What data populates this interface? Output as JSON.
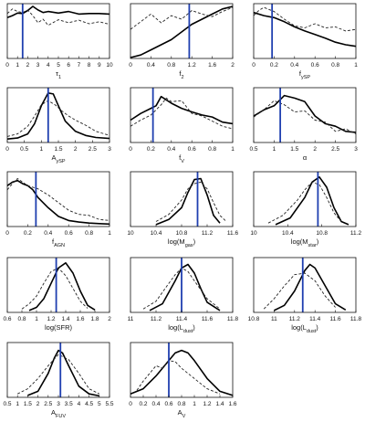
{
  "colors": {
    "axis": "#111111",
    "solid": "#000000",
    "dashed": "#222222",
    "marker": "#1f3fb0"
  },
  "chart_data": [
    {
      "type": "line",
      "xlabel_parts": [
        {
          "t": "τ"
        },
        {
          "t": "1",
          "sub": true
        }
      ],
      "xlim": [
        0,
        10
      ],
      "xticks": [
        "0",
        "1",
        "2",
        "3",
        "4",
        "5",
        "6",
        "7",
        "8",
        "9",
        "10"
      ],
      "marker": 1.5,
      "series": [
        {
          "style": "solid",
          "x": [
            0,
            0.5,
            1,
            1.5,
            2,
            2.5,
            3,
            3.5,
            4,
            5,
            6,
            7,
            8,
            9,
            10
          ],
          "y": [
            0.78,
            0.82,
            0.87,
            0.86,
            0.92,
            1.0,
            0.93,
            0.88,
            0.9,
            0.87,
            0.9,
            0.85,
            0.86,
            0.86,
            0.85
          ]
        },
        {
          "style": "dashed",
          "x": [
            0,
            0.5,
            1,
            1.5,
            2,
            2.5,
            3,
            3.5,
            4,
            5,
            6,
            7,
            8,
            9,
            10
          ],
          "y": [
            0.86,
            0.95,
            0.9,
            0.88,
            0.93,
            0.82,
            0.68,
            0.75,
            0.63,
            0.74,
            0.68,
            0.73,
            0.66,
            0.7,
            0.65
          ]
        }
      ]
    },
    {
      "type": "line",
      "xlabel_parts": [
        {
          "t": "f"
        },
        {
          "t": "2",
          "sub": true
        }
      ],
      "xlim": [
        0,
        2
      ],
      "xticks": [
        "0",
        "0.4",
        "0.8",
        "1.2",
        "1.6",
        "2"
      ],
      "marker": 1.15,
      "series": [
        {
          "style": "solid",
          "x": [
            0,
            0.2,
            0.4,
            0.6,
            0.8,
            1.0,
            1.2,
            1.4,
            1.6,
            1.8,
            2.0
          ],
          "y": [
            0.0,
            0.05,
            0.15,
            0.25,
            0.35,
            0.5,
            0.65,
            0.75,
            0.85,
            0.95,
            1.0
          ]
        },
        {
          "style": "dashed",
          "x": [
            0,
            0.2,
            0.4,
            0.6,
            0.8,
            1.0,
            1.2,
            1.4,
            1.6,
            1.8,
            2.0
          ],
          "y": [
            0.55,
            0.7,
            0.85,
            0.68,
            0.82,
            0.75,
            0.92,
            0.85,
            0.8,
            0.9,
            0.98
          ]
        }
      ]
    },
    {
      "type": "line",
      "xlabel_parts": [
        {
          "t": "f"
        },
        {
          "t": "ySP",
          "sub": true
        }
      ],
      "xlim": [
        0,
        1
      ],
      "xticks": [
        "0",
        "0.2",
        "0.4",
        "0.6",
        "0.8",
        "1"
      ],
      "marker": 0.18,
      "series": [
        {
          "style": "solid",
          "x": [
            0,
            0.1,
            0.2,
            0.3,
            0.4,
            0.5,
            0.6,
            0.7,
            0.8,
            0.9,
            1.0
          ],
          "y": [
            0.88,
            0.82,
            0.78,
            0.7,
            0.6,
            0.52,
            0.45,
            0.38,
            0.3,
            0.25,
            0.22
          ]
        },
        {
          "style": "dashed",
          "x": [
            0,
            0.05,
            0.1,
            0.2,
            0.3,
            0.4,
            0.5,
            0.6,
            0.7,
            0.8,
            0.9,
            1.0
          ],
          "y": [
            0.82,
            0.92,
            0.98,
            0.9,
            0.75,
            0.62,
            0.58,
            0.66,
            0.58,
            0.6,
            0.52,
            0.55
          ]
        }
      ]
    },
    {
      "type": "line",
      "xlabel_parts": [
        {
          "t": "A"
        },
        {
          "t": "ySP",
          "sub": true
        }
      ],
      "xlim": [
        0,
        3
      ],
      "xticks": [
        "0",
        "0.5",
        "1",
        "1.5",
        "2",
        "2.5",
        "3"
      ],
      "marker": 1.2,
      "series": [
        {
          "style": "solid",
          "x": [
            0,
            0.3,
            0.6,
            0.8,
            1.0,
            1.2,
            1.35,
            1.5,
            1.7,
            2.0,
            2.3,
            2.6,
            3.0
          ],
          "y": [
            0.05,
            0.07,
            0.15,
            0.35,
            0.7,
            0.95,
            0.93,
            0.7,
            0.4,
            0.2,
            0.12,
            0.08,
            0.06
          ]
        },
        {
          "style": "dashed",
          "x": [
            0,
            0.3,
            0.6,
            0.8,
            1.0,
            1.2,
            1.4,
            1.6,
            1.8,
            2.0,
            2.3,
            2.6,
            3.0
          ],
          "y": [
            0.1,
            0.15,
            0.3,
            0.5,
            0.72,
            0.8,
            0.72,
            0.6,
            0.5,
            0.42,
            0.32,
            0.2,
            0.12
          ]
        }
      ]
    },
    {
      "type": "line",
      "xlabel_parts": [
        {
          "t": "f"
        },
        {
          "t": "V",
          "sub": true
        }
      ],
      "xlim": [
        0,
        1
      ],
      "xticks": [
        "0",
        "0.2",
        "0.4",
        "0.6",
        "0.8",
        "1"
      ],
      "marker": 0.22,
      "series": [
        {
          "style": "solid",
          "x": [
            0,
            0.1,
            0.2,
            0.25,
            0.3,
            0.4,
            0.5,
            0.6,
            0.7,
            0.8,
            0.9,
            1.0
          ],
          "y": [
            0.42,
            0.55,
            0.65,
            0.7,
            0.88,
            0.75,
            0.65,
            0.58,
            0.52,
            0.48,
            0.38,
            0.35
          ]
        },
        {
          "style": "dashed",
          "x": [
            0,
            0.1,
            0.2,
            0.3,
            0.35,
            0.4,
            0.5,
            0.6,
            0.7,
            0.8,
            0.9,
            1.0
          ],
          "y": [
            0.3,
            0.42,
            0.52,
            0.72,
            0.85,
            0.78,
            0.8,
            0.55,
            0.5,
            0.4,
            0.3,
            0.25
          ]
        }
      ]
    },
    {
      "type": "line",
      "xlabel_parts": [
        {
          "t": "α"
        }
      ],
      "xlim": [
        0.5,
        3
      ],
      "xticks": [
        "0.5",
        "1",
        "1.5",
        "2",
        "2.5",
        "3"
      ],
      "marker": 1.15,
      "series": [
        {
          "style": "solid",
          "x": [
            0.5,
            0.75,
            1.0,
            1.25,
            1.5,
            1.75,
            2.0,
            2.25,
            2.5,
            2.75,
            3.0
          ],
          "y": [
            0.5,
            0.62,
            0.7,
            0.9,
            0.85,
            0.78,
            0.5,
            0.35,
            0.3,
            0.2,
            0.18
          ]
        },
        {
          "style": "dashed",
          "x": [
            0.5,
            0.75,
            1.0,
            1.25,
            1.5,
            1.75,
            2.0,
            2.25,
            2.5,
            2.75,
            3.0
          ],
          "y": [
            0.48,
            0.62,
            0.8,
            0.72,
            0.58,
            0.6,
            0.42,
            0.38,
            0.2,
            0.25,
            0.15
          ]
        }
      ]
    },
    {
      "type": "line",
      "xlabel_parts": [
        {
          "t": "f"
        },
        {
          "t": "AGN",
          "sub": true
        }
      ],
      "xlim": [
        0,
        1
      ],
      "xticks": [
        "0",
        "0.2",
        "0.4",
        "0.6",
        "0.8",
        "1"
      ],
      "marker": 0.28,
      "series": [
        {
          "style": "solid",
          "x": [
            0,
            0.05,
            0.1,
            0.15,
            0.2,
            0.25,
            0.3,
            0.4,
            0.5,
            0.6,
            0.7,
            0.8,
            0.9,
            1.0
          ],
          "y": [
            0.78,
            0.85,
            0.88,
            0.82,
            0.78,
            0.7,
            0.55,
            0.35,
            0.18,
            0.1,
            0.07,
            0.05,
            0.04,
            0.03
          ]
        },
        {
          "style": "dashed",
          "x": [
            0,
            0.05,
            0.1,
            0.15,
            0.2,
            0.3,
            0.4,
            0.5,
            0.6,
            0.7,
            0.8,
            0.9,
            1.0
          ],
          "y": [
            0.7,
            0.82,
            0.92,
            0.85,
            0.78,
            0.72,
            0.6,
            0.45,
            0.3,
            0.22,
            0.2,
            0.12,
            0.1
          ]
        }
      ]
    },
    {
      "type": "line",
      "xlabel_parts": [
        {
          "t": "log(M"
        },
        {
          "t": "gas",
          "sub": true
        },
        {
          "t": ")"
        }
      ],
      "xlim": [
        10,
        11.6
      ],
      "xticks": [
        "10",
        "10.4",
        "10.8",
        "11.2",
        "11.6"
      ],
      "marker": 11.05,
      "series": [
        {
          "style": "solid",
          "x": [
            10.4,
            10.6,
            10.8,
            10.9,
            11.0,
            11.1,
            11.2,
            11.3,
            11.4
          ],
          "y": [
            0.02,
            0.12,
            0.35,
            0.65,
            0.9,
            0.92,
            0.6,
            0.2,
            0.05
          ]
        },
        {
          "style": "dashed",
          "x": [
            10.4,
            10.6,
            10.8,
            10.9,
            11.0,
            11.1,
            11.2,
            11.3,
            11.4,
            11.5
          ],
          "y": [
            0.08,
            0.22,
            0.5,
            0.72,
            0.82,
            0.85,
            0.72,
            0.45,
            0.2,
            0.08
          ]
        }
      ]
    },
    {
      "type": "line",
      "xlabel_parts": [
        {
          "t": "log(M"
        },
        {
          "t": "star",
          "sub": true
        },
        {
          "t": ")"
        }
      ],
      "xlim": [
        10,
        11.4
      ],
      "xticks": [
        "10",
        "10.4",
        "10.8",
        "11.2"
      ],
      "marker": 10.88,
      "series": [
        {
          "style": "solid",
          "x": [
            10.3,
            10.5,
            10.7,
            10.8,
            10.9,
            11.0,
            11.1,
            11.2,
            11.3
          ],
          "y": [
            0.02,
            0.15,
            0.55,
            0.85,
            0.95,
            0.75,
            0.35,
            0.08,
            0.02
          ]
        },
        {
          "style": "dashed",
          "x": [
            10.2,
            10.4,
            10.6,
            10.7,
            10.8,
            10.9,
            11.0,
            11.1,
            11.2
          ],
          "y": [
            0.05,
            0.2,
            0.5,
            0.7,
            0.85,
            0.8,
            0.55,
            0.25,
            0.08
          ]
        }
      ]
    },
    {
      "type": "line",
      "xlabel_parts": [
        {
          "t": "log(SFR)"
        }
      ],
      "xlim": [
        0.6,
        2
      ],
      "xticks": [
        "0.6",
        "0.8",
        "1",
        "1.2",
        "1.4",
        "1.6",
        "1.8",
        "2"
      ],
      "marker": 1.27,
      "series": [
        {
          "style": "solid",
          "x": [
            0.9,
            1.0,
            1.1,
            1.2,
            1.3,
            1.4,
            1.5,
            1.6,
            1.7,
            1.8
          ],
          "y": [
            0.02,
            0.08,
            0.25,
            0.55,
            0.85,
            0.95,
            0.75,
            0.4,
            0.12,
            0.03
          ]
        },
        {
          "style": "dashed",
          "x": [
            0.8,
            0.9,
            1.0,
            1.1,
            1.2,
            1.3,
            1.4,
            1.5,
            1.6,
            1.7
          ],
          "y": [
            0.05,
            0.15,
            0.3,
            0.55,
            0.78,
            0.85,
            0.7,
            0.45,
            0.2,
            0.06
          ]
        }
      ]
    },
    {
      "type": "line",
      "xlabel_parts": [
        {
          "t": "log(L"
        },
        {
          "t": "dust",
          "sub": true
        },
        {
          "t": ")"
        }
      ],
      "xlim": [
        11,
        11.8
      ],
      "xticks": [
        "11",
        "11.2",
        "11.4",
        "11.6",
        "11.8"
      ],
      "marker": 11.4,
      "series": [
        {
          "style": "solid",
          "x": [
            11.15,
            11.25,
            11.35,
            11.4,
            11.45,
            11.5,
            11.55,
            11.6,
            11.7
          ],
          "y": [
            0.02,
            0.15,
            0.6,
            0.85,
            0.92,
            0.75,
            0.45,
            0.18,
            0.02
          ]
        },
        {
          "style": "dashed",
          "x": [
            11.1,
            11.2,
            11.3,
            11.35,
            11.4,
            11.45,
            11.5,
            11.6,
            11.7
          ],
          "y": [
            0.05,
            0.2,
            0.55,
            0.72,
            0.85,
            0.78,
            0.6,
            0.25,
            0.05
          ]
        }
      ]
    },
    {
      "type": "line",
      "xlabel_parts": [
        {
          "t": "log(L"
        },
        {
          "t": "dust",
          "sub": true
        },
        {
          "t": ")"
        }
      ],
      "xlim": [
        10.8,
        11.8
      ],
      "xticks": [
        "10.8",
        "11",
        "11.2",
        "11.4",
        "11.6",
        "11.8"
      ],
      "marker": 11.28,
      "series": [
        {
          "style": "solid",
          "x": [
            11.0,
            11.1,
            11.2,
            11.3,
            11.35,
            11.4,
            11.5,
            11.6,
            11.7
          ],
          "y": [
            0.02,
            0.12,
            0.4,
            0.8,
            0.92,
            0.85,
            0.5,
            0.15,
            0.03
          ]
        },
        {
          "style": "dashed",
          "x": [
            10.9,
            11.0,
            11.1,
            11.2,
            11.3,
            11.4,
            11.5,
            11.6
          ],
          "y": [
            0.05,
            0.25,
            0.5,
            0.72,
            0.75,
            0.6,
            0.3,
            0.08
          ]
        }
      ]
    },
    {
      "type": "line",
      "xlabel_parts": [
        {
          "t": "A"
        },
        {
          "t": "FUV",
          "sub": true
        }
      ],
      "xlim": [
        0.5,
        5.5
      ],
      "xticks": [
        "0.5",
        "1",
        "1.5",
        "2",
        "2.5",
        "3",
        "3.5",
        "4",
        "4.5",
        "5",
        "5.5"
      ],
      "marker": 3.1,
      "series": [
        {
          "style": "solid",
          "x": [
            1.5,
            2.0,
            2.5,
            2.8,
            3.0,
            3.2,
            3.5,
            4.0,
            4.5,
            5.0
          ],
          "y": [
            0.02,
            0.1,
            0.45,
            0.75,
            0.9,
            0.85,
            0.6,
            0.2,
            0.05,
            0.01
          ]
        },
        {
          "style": "dashed",
          "x": [
            1.0,
            1.5,
            2.0,
            2.5,
            3.0,
            3.5,
            4.0,
            4.5,
            5.0
          ],
          "y": [
            0.05,
            0.15,
            0.35,
            0.6,
            0.82,
            0.72,
            0.45,
            0.15,
            0.05
          ]
        }
      ]
    },
    {
      "type": "line",
      "xlabel_parts": [
        {
          "t": "A"
        },
        {
          "t": "V",
          "sub": true
        }
      ],
      "xlim": [
        0,
        1.6
      ],
      "xticks": [
        "0",
        "0.2",
        "0.4",
        "0.6",
        "0.8",
        "1",
        "1.2",
        "1.4",
        "1.6"
      ],
      "marker": 0.6,
      "series": [
        {
          "style": "solid",
          "x": [
            0,
            0.2,
            0.4,
            0.6,
            0.7,
            0.8,
            0.9,
            1.0,
            1.2,
            1.4,
            1.6
          ],
          "y": [
            0.05,
            0.15,
            0.4,
            0.7,
            0.85,
            0.9,
            0.85,
            0.7,
            0.35,
            0.1,
            0.02
          ]
        },
        {
          "style": "dashed",
          "x": [
            0.1,
            0.2,
            0.3,
            0.4,
            0.5,
            0.6,
            0.7,
            0.8,
            1.0,
            1.2,
            1.4
          ],
          "y": [
            0.12,
            0.3,
            0.45,
            0.6,
            0.55,
            0.7,
            0.68,
            0.55,
            0.35,
            0.15,
            0.05
          ]
        }
      ]
    }
  ]
}
